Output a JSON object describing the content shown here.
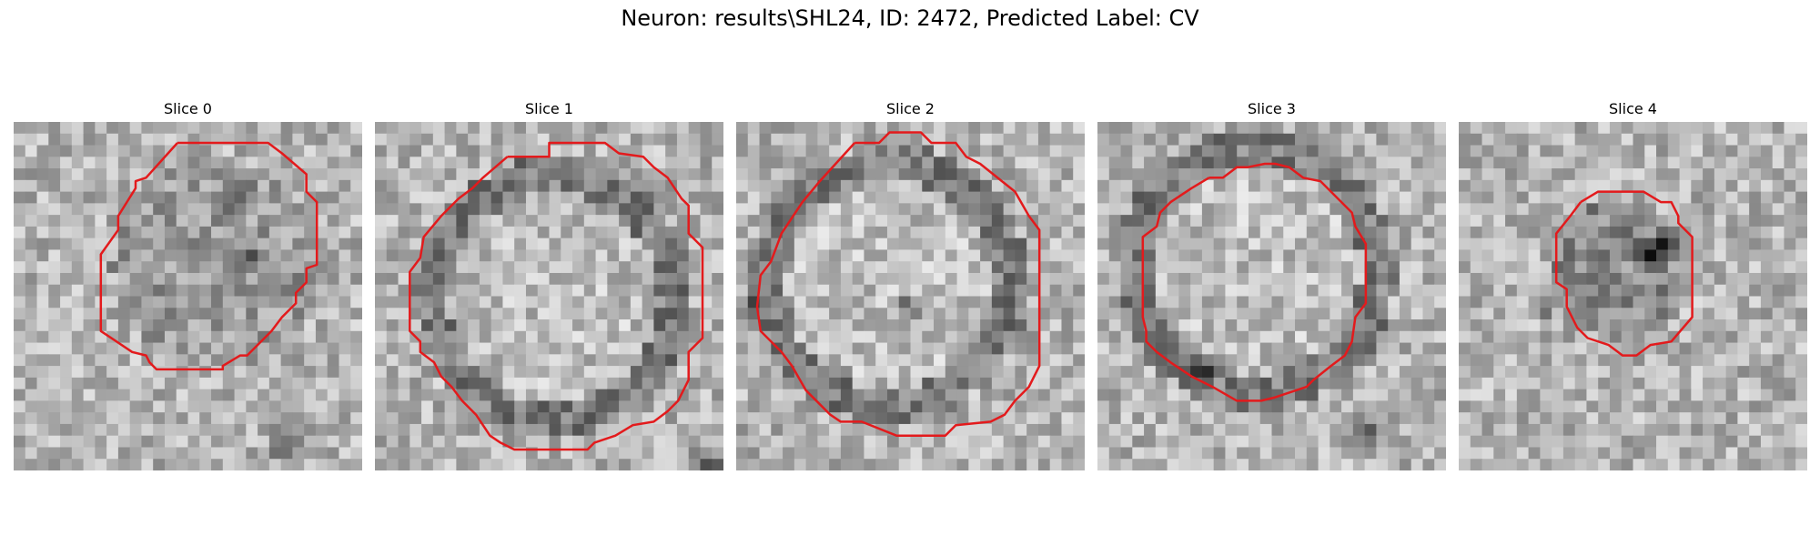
{
  "figure": {
    "title": "Neuron: results\\SHL24, ID: 2472, Predicted Label: CV",
    "contour_color": "#e31a1c",
    "slices": [
      {
        "title": "Slice 0",
        "seed": 11,
        "contrast": "light",
        "dark_spots": [
          [
            0.66,
            0.22
          ],
          [
            0.67,
            0.4
          ],
          [
            0.78,
            0.93
          ]
        ],
        "contour": [
          [
            0.47,
            0.06
          ],
          [
            0.73,
            0.06
          ],
          [
            0.77,
            0.09
          ],
          [
            0.84,
            0.15
          ],
          [
            0.84,
            0.2
          ],
          [
            0.87,
            0.23
          ],
          [
            0.87,
            0.41
          ],
          [
            0.84,
            0.42
          ],
          [
            0.84,
            0.46
          ],
          [
            0.81,
            0.49
          ],
          [
            0.81,
            0.52
          ],
          [
            0.77,
            0.56
          ],
          [
            0.74,
            0.6
          ],
          [
            0.67,
            0.67
          ],
          [
            0.65,
            0.67
          ],
          [
            0.6,
            0.7
          ],
          [
            0.6,
            0.71
          ],
          [
            0.41,
            0.71
          ],
          [
            0.39,
            0.69
          ],
          [
            0.38,
            0.67
          ],
          [
            0.34,
            0.66
          ],
          [
            0.25,
            0.6
          ],
          [
            0.25,
            0.38
          ],
          [
            0.3,
            0.31
          ],
          [
            0.3,
            0.27
          ],
          [
            0.35,
            0.19
          ],
          [
            0.35,
            0.17
          ],
          [
            0.38,
            0.16
          ],
          [
            0.47,
            0.06
          ]
        ]
      },
      {
        "title": "Slice 1",
        "seed": 23,
        "contrast": "ring",
        "dark_spots": [
          [
            0.96,
            0.97
          ]
        ],
        "contour": [
          [
            0.38,
            0.1
          ],
          [
            0.5,
            0.1
          ],
          [
            0.5,
            0.06
          ],
          [
            0.66,
            0.06
          ],
          [
            0.7,
            0.09
          ],
          [
            0.77,
            0.1
          ],
          [
            0.8,
            0.13
          ],
          [
            0.84,
            0.16
          ],
          [
            0.88,
            0.22
          ],
          [
            0.9,
            0.24
          ],
          [
            0.9,
            0.32
          ],
          [
            0.94,
            0.36
          ],
          [
            0.94,
            0.62
          ],
          [
            0.9,
            0.66
          ],
          [
            0.9,
            0.74
          ],
          [
            0.87,
            0.8
          ],
          [
            0.84,
            0.83
          ],
          [
            0.8,
            0.86
          ],
          [
            0.74,
            0.87
          ],
          [
            0.69,
            0.9
          ],
          [
            0.63,
            0.92
          ],
          [
            0.61,
            0.94
          ],
          [
            0.4,
            0.94
          ],
          [
            0.36,
            0.92
          ],
          [
            0.33,
            0.9
          ],
          [
            0.29,
            0.84
          ],
          [
            0.25,
            0.8
          ],
          [
            0.22,
            0.76
          ],
          [
            0.19,
            0.73
          ],
          [
            0.17,
            0.69
          ],
          [
            0.13,
            0.66
          ],
          [
            0.13,
            0.63
          ],
          [
            0.1,
            0.6
          ],
          [
            0.1,
            0.43
          ],
          [
            0.13,
            0.39
          ],
          [
            0.14,
            0.33
          ],
          [
            0.19,
            0.27
          ],
          [
            0.24,
            0.22
          ],
          [
            0.28,
            0.19
          ],
          [
            0.31,
            0.16
          ],
          [
            0.38,
            0.1
          ]
        ]
      },
      {
        "title": "Slice 2",
        "seed": 37,
        "contrast": "ring",
        "dark_spots": [
          [
            0.5,
            0.54
          ],
          [
            0.04,
            0.53
          ]
        ],
        "contour": [
          [
            0.34,
            0.06
          ],
          [
            0.41,
            0.06
          ],
          [
            0.44,
            0.03
          ],
          [
            0.53,
            0.03
          ],
          [
            0.56,
            0.06
          ],
          [
            0.63,
            0.06
          ],
          [
            0.66,
            0.1
          ],
          [
            0.7,
            0.12
          ],
          [
            0.8,
            0.2
          ],
          [
            0.84,
            0.27
          ],
          [
            0.87,
            0.31
          ],
          [
            0.87,
            0.7
          ],
          [
            0.84,
            0.76
          ],
          [
            0.8,
            0.8
          ],
          [
            0.77,
            0.84
          ],
          [
            0.73,
            0.86
          ],
          [
            0.63,
            0.87
          ],
          [
            0.6,
            0.9
          ],
          [
            0.46,
            0.9
          ],
          [
            0.36,
            0.86
          ],
          [
            0.3,
            0.86
          ],
          [
            0.27,
            0.84
          ],
          [
            0.2,
            0.77
          ],
          [
            0.16,
            0.7
          ],
          [
            0.13,
            0.66
          ],
          [
            0.1,
            0.63
          ],
          [
            0.07,
            0.6
          ],
          [
            0.06,
            0.53
          ],
          [
            0.07,
            0.44
          ],
          [
            0.1,
            0.4
          ],
          [
            0.13,
            0.32
          ],
          [
            0.17,
            0.26
          ],
          [
            0.19,
            0.23
          ],
          [
            0.24,
            0.17
          ],
          [
            0.34,
            0.06
          ]
        ]
      },
      {
        "title": "Slice 3",
        "seed": 53,
        "contrast": "ring",
        "dark_spots": [
          [
            0.79,
            0.88
          ],
          [
            0.3,
            0.7
          ]
        ],
        "contour": [
          [
            0.32,
            0.16
          ],
          [
            0.36,
            0.16
          ],
          [
            0.4,
            0.13
          ],
          [
            0.43,
            0.13
          ],
          [
            0.48,
            0.12
          ],
          [
            0.51,
            0.12
          ],
          [
            0.55,
            0.13
          ],
          [
            0.59,
            0.16
          ],
          [
            0.64,
            0.17
          ],
          [
            0.67,
            0.2
          ],
          [
            0.7,
            0.23
          ],
          [
            0.73,
            0.26
          ],
          [
            0.74,
            0.3
          ],
          [
            0.77,
            0.35
          ],
          [
            0.77,
            0.52
          ],
          [
            0.74,
            0.56
          ],
          [
            0.73,
            0.63
          ],
          [
            0.71,
            0.67
          ],
          [
            0.67,
            0.7
          ],
          [
            0.62,
            0.74
          ],
          [
            0.6,
            0.76
          ],
          [
            0.51,
            0.79
          ],
          [
            0.47,
            0.8
          ],
          [
            0.4,
            0.8
          ],
          [
            0.33,
            0.76
          ],
          [
            0.27,
            0.73
          ],
          [
            0.21,
            0.69
          ],
          [
            0.17,
            0.66
          ],
          [
            0.14,
            0.63
          ],
          [
            0.14,
            0.6
          ],
          [
            0.13,
            0.56
          ],
          [
            0.13,
            0.33
          ],
          [
            0.17,
            0.3
          ],
          [
            0.18,
            0.26
          ],
          [
            0.21,
            0.23
          ],
          [
            0.27,
            0.19
          ],
          [
            0.32,
            0.16
          ]
        ]
      },
      {
        "title": "Slice 4",
        "seed": 71,
        "contrast": "dark",
        "dark_spots": [
          [
            0.24,
            0.52
          ],
          [
            0.55,
            0.38
          ],
          [
            0.6,
            0.35
          ]
        ],
        "contour": [
          [
            0.35,
            0.23
          ],
          [
            0.4,
            0.2
          ],
          [
            0.53,
            0.2
          ],
          [
            0.58,
            0.23
          ],
          [
            0.61,
            0.23
          ],
          [
            0.63,
            0.27
          ],
          [
            0.63,
            0.29
          ],
          [
            0.67,
            0.33
          ],
          [
            0.67,
            0.56
          ],
          [
            0.61,
            0.63
          ],
          [
            0.55,
            0.64
          ],
          [
            0.51,
            0.67
          ],
          [
            0.47,
            0.67
          ],
          [
            0.43,
            0.64
          ],
          [
            0.37,
            0.62
          ],
          [
            0.34,
            0.59
          ],
          [
            0.31,
            0.53
          ],
          [
            0.31,
            0.48
          ],
          [
            0.28,
            0.46
          ],
          [
            0.28,
            0.32
          ],
          [
            0.32,
            0.27
          ],
          [
            0.35,
            0.23
          ]
        ]
      }
    ]
  }
}
